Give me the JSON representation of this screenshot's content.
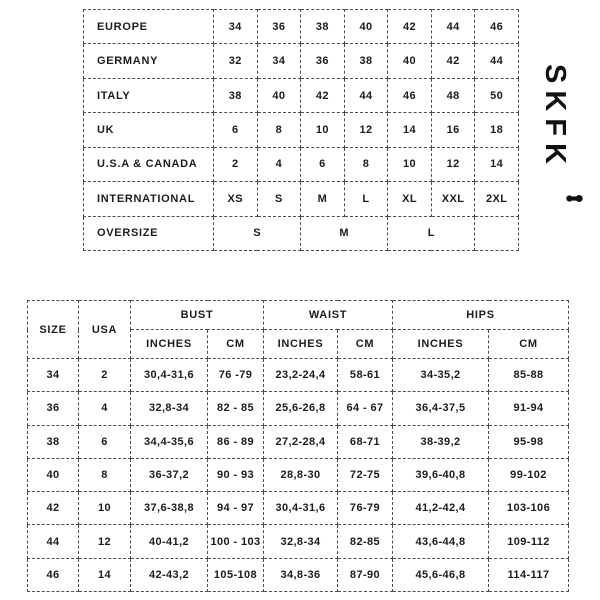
{
  "brand": {
    "logo_text": "SKFK",
    "logo_symbol": "dumbbell-icon"
  },
  "conversion_table": {
    "rows": [
      {
        "label": "EUROPE",
        "cells": [
          {
            "v": "34"
          },
          {
            "v": "36"
          },
          {
            "v": "38"
          },
          {
            "v": "40"
          },
          {
            "v": "42"
          },
          {
            "v": "44"
          },
          {
            "v": "46"
          }
        ]
      },
      {
        "label": "GERMANY",
        "cells": [
          {
            "v": "32"
          },
          {
            "v": "34"
          },
          {
            "v": "36"
          },
          {
            "v": "38"
          },
          {
            "v": "40"
          },
          {
            "v": "42"
          },
          {
            "v": "44"
          }
        ]
      },
      {
        "label": "ITALY",
        "cells": [
          {
            "v": "38"
          },
          {
            "v": "40"
          },
          {
            "v": "42"
          },
          {
            "v": "44"
          },
          {
            "v": "46"
          },
          {
            "v": "48"
          },
          {
            "v": "50"
          }
        ]
      },
      {
        "label": "UK",
        "cells": [
          {
            "v": "6"
          },
          {
            "v": "8"
          },
          {
            "v": "10"
          },
          {
            "v": "12"
          },
          {
            "v": "14"
          },
          {
            "v": "16"
          },
          {
            "v": "18"
          }
        ]
      },
      {
        "label": "U.S.A & CANADA",
        "cells": [
          {
            "v": "2"
          },
          {
            "v": "4"
          },
          {
            "v": "6"
          },
          {
            "v": "8"
          },
          {
            "v": "10"
          },
          {
            "v": "12"
          },
          {
            "v": "14"
          }
        ]
      },
      {
        "label": "INTERNATIONAL",
        "cells": [
          {
            "v": "XS"
          },
          {
            "v": "S"
          },
          {
            "v": "M"
          },
          {
            "v": "L"
          },
          {
            "v": "XL"
          },
          {
            "v": "XXL"
          },
          {
            "v": "2XL"
          }
        ]
      },
      {
        "label": "OVERSIZE",
        "cells": [
          {
            "v": "S",
            "span": 2
          },
          {
            "v": "M",
            "span": 2
          },
          {
            "v": "L",
            "span": 2
          },
          {
            "v": "",
            "span": 1
          }
        ]
      }
    ]
  },
  "measurement_table": {
    "header": {
      "size": "SIZE",
      "usa": "USA",
      "groups": [
        {
          "label": "BUST",
          "sub": [
            "INCHES",
            "CM"
          ]
        },
        {
          "label": "WAIST",
          "sub": [
            "INCHES",
            "CM"
          ]
        },
        {
          "label": "HIPS",
          "sub": [
            "INCHES",
            "CM"
          ]
        }
      ]
    },
    "rows": [
      [
        "34",
        "2",
        "30,4-31,6",
        "76 -79",
        "23,2-24,4",
        "58-61",
        "34-35,2",
        "85-88"
      ],
      [
        "36",
        "4",
        "32,8-34",
        "82 - 85",
        "25,6-26,8",
        "64 - 67",
        "36,4-37,5",
        "91-94"
      ],
      [
        "38",
        "6",
        "34,4-35,6",
        "86 - 89",
        "27,2-28,4",
        "68-71",
        "38-39,2",
        "95-98"
      ],
      [
        "40",
        "8",
        "36-37,2",
        "90 - 93",
        "28,8-30",
        "72-75",
        "39,6-40,8",
        "99-102"
      ],
      [
        "42",
        "10",
        "37,6-38,8",
        "94 - 97",
        "30,4-31,6",
        "76-79",
        "41,2-42,4",
        "103-106"
      ],
      [
        "44",
        "12",
        "40-41,2",
        "100 - 103",
        "32,8-34",
        "82-85",
        "43,6-44,8",
        "109-112"
      ],
      [
        "46",
        "14",
        "42-43,2",
        "105-108",
        "34,8-36",
        "87-90",
        "45,6-46,8",
        "114-117"
      ]
    ]
  }
}
